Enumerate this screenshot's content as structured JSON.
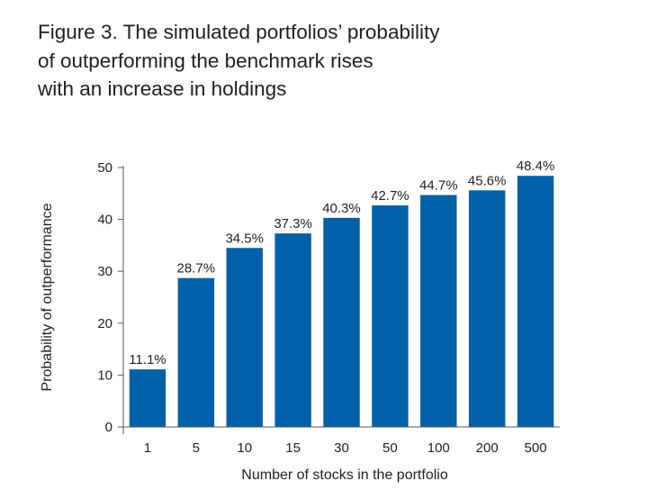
{
  "title_lines": [
    "Figure 3. The simulated portfolios’ probability",
    "of outperforming the benchmark rises",
    "with an increase in holdings"
  ],
  "chart_data": {
    "type": "bar",
    "title": "Figure 3. The simulated portfolios’ probability of outperforming the benchmark rises with an increase in holdings",
    "categories": [
      "1",
      "5",
      "10",
      "15",
      "30",
      "50",
      "100",
      "200",
      "500"
    ],
    "values": [
      11.1,
      28.7,
      34.5,
      37.3,
      40.3,
      42.7,
      44.7,
      45.6,
      48.4
    ],
    "data_labels": [
      "11.1%",
      "28.7%",
      "34.5%",
      "37.3%",
      "40.3%",
      "42.7%",
      "44.7%",
      "45.6%",
      "48.4%"
    ],
    "xlabel": "Number of stocks in the portfolio",
    "ylabel": "Probability of outperformance",
    "ylim": [
      0,
      50
    ],
    "yticks": [
      0,
      10,
      20,
      30,
      40,
      50
    ],
    "grid": false,
    "bar_color": "#0061a8",
    "axis_color": "#555555"
  }
}
